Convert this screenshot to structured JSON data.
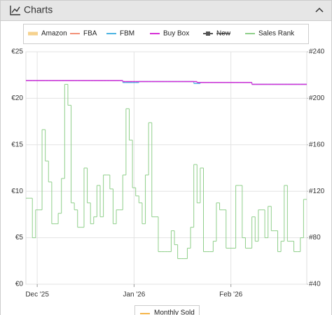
{
  "panel": {
    "title": "Charts",
    "secondary_legend": "Monthly Sold"
  },
  "chart_data": {
    "type": "step-line",
    "categories": [
      null,
      null,
      null,
      "Dec '25",
      null,
      null,
      null,
      null,
      null,
      null,
      null,
      null,
      null,
      null,
      null,
      null,
      null,
      null,
      null,
      null,
      null,
      null,
      null,
      null,
      null,
      null,
      null,
      null,
      null,
      null,
      null,
      null,
      null,
      "Jan '26",
      null,
      null,
      null,
      null,
      null,
      null,
      null,
      null,
      null,
      null,
      null,
      null,
      null,
      null,
      null,
      null,
      null,
      null,
      null,
      null,
      null,
      null,
      null,
      null,
      null,
      null,
      null,
      null,
      null,
      "Feb '26",
      null,
      null,
      null,
      null,
      null,
      null,
      null,
      null,
      null,
      null,
      null,
      null,
      null,
      null,
      null,
      null,
      null,
      null,
      null,
      null,
      null,
      null,
      null
    ],
    "ylim": [
      0,
      25
    ],
    "yticks": [
      {
        "value": 0,
        "label": "€0"
      },
      {
        "value": 5,
        "label": "€5"
      },
      {
        "value": 10,
        "label": "€10"
      },
      {
        "value": 15,
        "label": "€15"
      },
      {
        "value": 20,
        "label": "€20"
      },
      {
        "value": 25,
        "label": "€25"
      }
    ],
    "y2lim": [
      40,
      240
    ],
    "y2ticks": [
      {
        "value": 40,
        "label": "#40"
      },
      {
        "value": 80,
        "label": "#80"
      },
      {
        "value": 120,
        "label": "#120"
      },
      {
        "value": 160,
        "label": "#160"
      },
      {
        "value": 200,
        "label": "#200"
      },
      {
        "value": 240,
        "label": "#240"
      }
    ],
    "grid": true,
    "series": [
      {
        "name": "Amazon",
        "color": "#f6d28e",
        "values": [
          null,
          null,
          null,
          null,
          null,
          null,
          null,
          null,
          null,
          null,
          null,
          null,
          null,
          null,
          null,
          null,
          null,
          null,
          null,
          null,
          null,
          null,
          null,
          null,
          null,
          null,
          null,
          null,
          null,
          null,
          null,
          null,
          null,
          null,
          null,
          null,
          null,
          null,
          null,
          null,
          null,
          null,
          null,
          null,
          null,
          null,
          null,
          null,
          null,
          null,
          null,
          null,
          null,
          null,
          null,
          null,
          null,
          null,
          null,
          null,
          null,
          null,
          null,
          null,
          null,
          null,
          null,
          null,
          null,
          null,
          null,
          null,
          null,
          null,
          null,
          null,
          null,
          null,
          null,
          null,
          null,
          null,
          null,
          null,
          null,
          null,
          null
        ]
      },
      {
        "name": "FBA",
        "color": "#f39178",
        "values": [
          null,
          null,
          null,
          null,
          null,
          null,
          null,
          null,
          null,
          null,
          null,
          null,
          null,
          null,
          null,
          null,
          null,
          null,
          null,
          null,
          null,
          null,
          null,
          null,
          null,
          null,
          null,
          null,
          null,
          null,
          null,
          null,
          null,
          null,
          null,
          null,
          null,
          null,
          null,
          null,
          null,
          null,
          null,
          null,
          null,
          null,
          null,
          null,
          null,
          null,
          null,
          null,
          null,
          null,
          null,
          null,
          null,
          null,
          null,
          null,
          null,
          null,
          null,
          null,
          null,
          null,
          null,
          null,
          null,
          null,
          null,
          null,
          null,
          null,
          null,
          null,
          null,
          null,
          null,
          null,
          null,
          null,
          null,
          null,
          null,
          null,
          null
        ]
      },
      {
        "name": "FBM",
        "color": "#4ab3e2",
        "values": [
          21.9,
          21.9,
          21.9,
          21.9,
          21.9,
          21.9,
          21.9,
          21.9,
          21.9,
          21.9,
          21.9,
          21.9,
          21.9,
          21.9,
          21.9,
          21.9,
          21.9,
          21.9,
          21.9,
          21.9,
          21.9,
          21.9,
          21.9,
          21.9,
          21.9,
          21.9,
          21.9,
          21.9,
          21.9,
          21.9,
          21.7,
          21.7,
          21.7,
          21.7,
          21.7,
          21.8,
          21.8,
          21.8,
          21.8,
          21.8,
          21.8,
          21.8,
          21.8,
          21.8,
          21.8,
          21.8,
          21.8,
          21.8,
          21.8,
          21.8,
          21.8,
          21.8,
          21.6,
          21.6,
          21.7,
          21.7,
          21.7,
          21.7,
          21.7,
          21.7,
          21.7,
          21.7,
          21.7,
          21.7,
          21.7,
          21.7,
          21.7,
          21.7,
          21.7,
          21.7,
          21.5,
          21.5,
          21.5,
          21.5,
          21.5,
          21.5,
          21.5,
          21.5,
          21.5,
          21.5,
          21.5,
          21.5,
          21.5,
          21.5,
          21.5,
          21.5,
          21.5
        ]
      },
      {
        "name": "Buy Box",
        "color": "#d62fd6",
        "values": [
          21.9,
          21.9,
          21.9,
          21.9,
          21.9,
          21.9,
          21.9,
          21.9,
          21.9,
          21.9,
          21.9,
          21.9,
          21.9,
          21.9,
          21.9,
          21.9,
          21.9,
          21.9,
          21.9,
          21.9,
          21.9,
          21.9,
          21.9,
          21.9,
          21.9,
          21.9,
          21.9,
          21.9,
          21.9,
          21.9,
          21.8,
          21.8,
          21.8,
          21.8,
          21.8,
          21.8,
          21.8,
          21.8,
          21.8,
          21.8,
          21.8,
          21.8,
          21.8,
          21.8,
          21.8,
          21.8,
          21.8,
          21.8,
          21.8,
          21.8,
          21.8,
          21.8,
          21.8,
          21.7,
          21.7,
          21.7,
          21.7,
          21.7,
          21.7,
          21.7,
          21.7,
          21.7,
          21.7,
          21.7,
          21.7,
          21.7,
          21.7,
          21.7,
          21.7,
          21.7,
          21.5,
          21.5,
          21.5,
          21.5,
          21.5,
          21.5,
          21.5,
          21.5,
          21.5,
          21.5,
          21.5,
          21.5,
          21.5,
          21.5,
          21.5,
          21.5,
          21.5
        ]
      },
      {
        "name": "New",
        "color": "#555555",
        "hidden": true,
        "values": [
          null,
          null,
          null,
          null,
          null,
          null,
          null,
          null,
          null,
          null,
          null,
          null,
          null,
          null,
          null,
          null,
          null,
          null,
          null,
          null,
          null,
          null,
          null,
          null,
          null,
          null,
          null,
          null,
          null,
          null,
          null,
          null,
          null,
          null,
          null,
          null,
          null,
          null,
          null,
          null,
          null,
          null,
          null,
          null,
          null,
          null,
          null,
          null,
          null,
          null,
          null,
          null,
          null,
          null,
          null,
          null,
          null,
          null,
          null,
          null,
          null,
          null,
          null,
          null,
          null,
          null,
          null,
          null,
          null,
          null,
          null,
          null,
          null,
          null,
          null,
          null,
          null,
          null,
          null,
          null,
          null,
          null,
          null,
          null,
          null,
          null,
          null
        ]
      },
      {
        "name": "Sales Rank",
        "color": "#8fcf8a",
        "axis": "y2",
        "values": [
          114,
          114,
          80,
          104,
          104,
          173,
          146,
          128,
          92,
          92,
          101,
          131,
          212,
          194,
          110,
          104,
          89,
          89,
          140,
          110,
          92,
          98,
          125,
          98,
          134,
          134,
          122,
          92,
          104,
          104,
          134,
          191,
          164,
          123,
          116,
          110,
          92,
          134,
          179,
          98,
          98,
          68,
          68,
          68,
          68,
          86,
          74,
          62,
          62,
          62,
          71,
          89,
          143,
          110,
          140,
          68,
          68,
          68,
          77,
          110,
          104,
          104,
          71,
          71,
          71,
          125,
          125,
          80,
          71,
          71,
          98,
          77,
          104,
          104,
          80,
          107,
          86,
          86,
          68,
          77,
          125,
          77,
          77,
          68,
          68,
          80,
          113
        ]
      }
    ]
  }
}
